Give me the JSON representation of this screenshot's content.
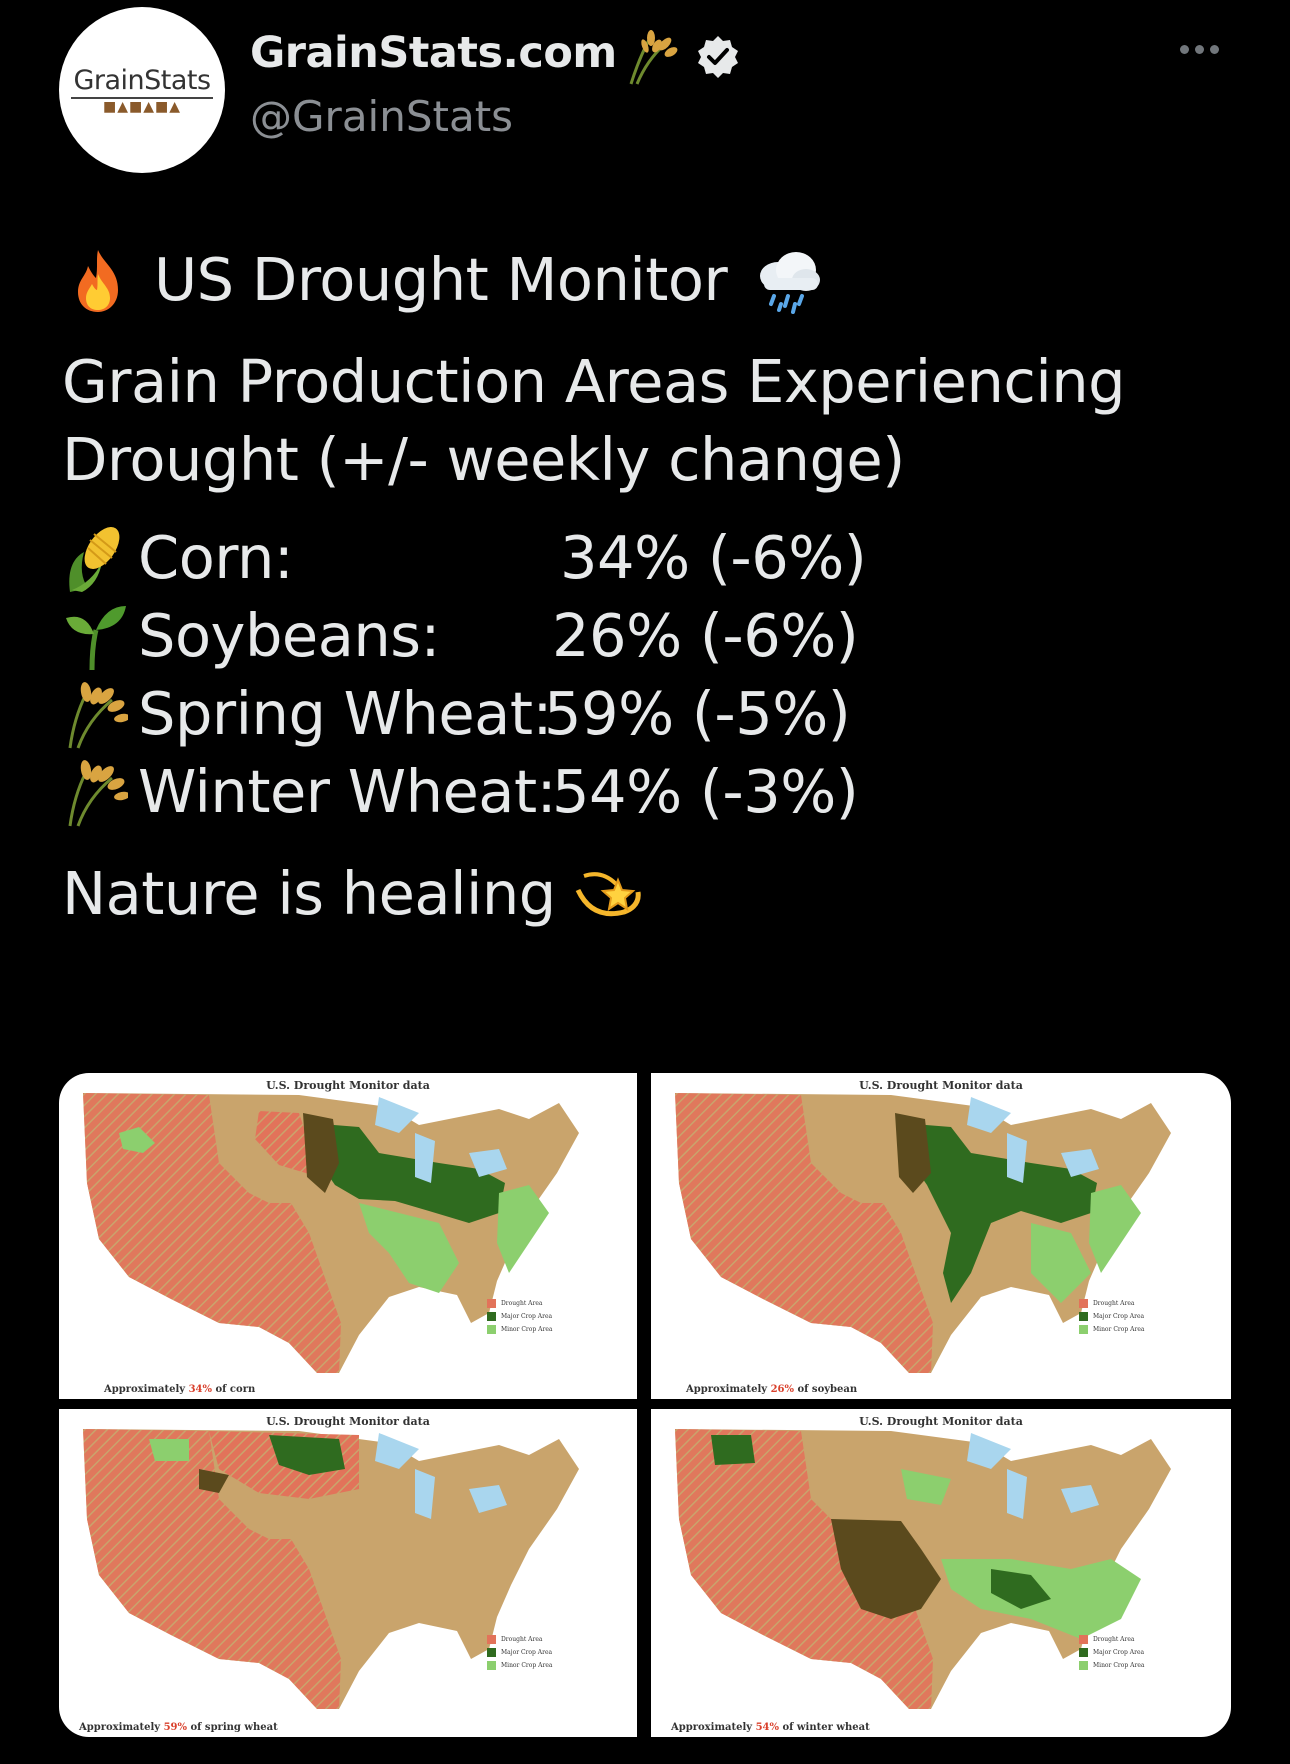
{
  "author": {
    "display_name": "GrainStats.com",
    "handle": "@GrainStats",
    "avatar_text": "GrainStats",
    "verified": true
  },
  "tweet": {
    "headline": "US Drought Monitor",
    "subhead_line1": "Grain Production Areas Experiencing",
    "subhead_line2": "Drought (+/- weekly change)",
    "crops": [
      {
        "label": "Corn:",
        "value": "34% (-6%)",
        "icon": "corn-icon"
      },
      {
        "label": "Soybeans:",
        "value": "26% (-6%)",
        "icon": "seedling-icon"
      },
      {
        "label": "Spring Wheat:",
        "value": "59% (-5%)",
        "icon": "wheat-icon"
      },
      {
        "label": "Winter Wheat:",
        "value": "54% (-3%)",
        "icon": "wheat-icon"
      }
    ],
    "closing": "Nature is healing"
  },
  "maps": [
    {
      "title": "U.S. Drought Monitor data",
      "caption_prefix": "Approximately ",
      "caption_pct": "34%",
      "caption_suffix": " of corn"
    },
    {
      "title": "U.S. Drought Monitor data",
      "caption_prefix": "Approximately ",
      "caption_pct": "26%",
      "caption_suffix": " of soybean"
    },
    {
      "title": "U.S. Drought Monitor data",
      "caption_prefix": "Approximately ",
      "caption_pct": "59%",
      "caption_suffix": " of spring wheat"
    },
    {
      "title": "U.S. Drought Monitor data",
      "caption_prefix": "Approximately ",
      "caption_pct": "54%",
      "caption_suffix": " of winter wheat"
    }
  ],
  "legend": {
    "drought": "Drought Area",
    "major": "Major Crop Area",
    "minor": "Minor Crop Area"
  },
  "colors": {
    "background": "#000000",
    "text": "#e7e9ea",
    "handle": "#8b8f94",
    "map_tan": "#c9a46c",
    "drought_red": "#e2735a",
    "major_green": "#2f6b1f",
    "minor_green": "#8ccf6e",
    "water": "#a9d6ee"
  }
}
